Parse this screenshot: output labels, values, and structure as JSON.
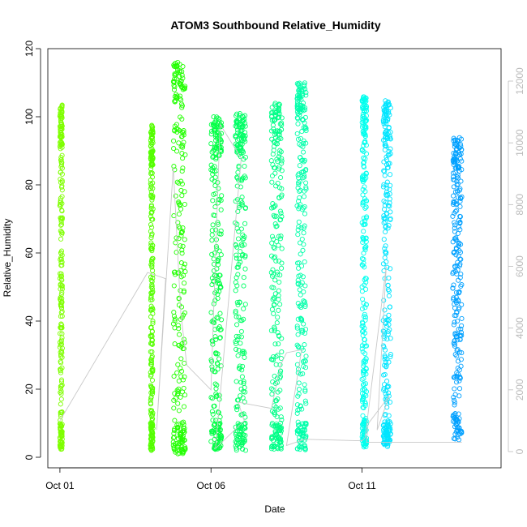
{
  "chart_data": {
    "type": "scatter",
    "title": "ATOM3 Southbound Relative_Humidity",
    "xlabel": "Date",
    "ylabel": "Relative_Humidity",
    "ylim": [
      0,
      120
    ],
    "y_ticks": [
      0,
      20,
      40,
      60,
      80,
      100,
      120
    ],
    "xlim_days": [
      0.6,
      15.6
    ],
    "x_ticks": [
      {
        "day": 1,
        "label": "Oct 01"
      },
      {
        "day": 6,
        "label": "Oct 06"
      },
      {
        "day": 11,
        "label": "Oct 11"
      }
    ],
    "y2lim": [
      0,
      12000
    ],
    "y2_ticks": [
      0,
      2000,
      4000,
      6000,
      8000,
      10000,
      12000
    ],
    "grid": false,
    "marker": "open-circle",
    "colors": {
      "axis": "#000000",
      "secondary_axis": "#bbbbbb",
      "secondary_line": "#c8c8c8"
    },
    "series": [
      {
        "day_start": 1.0,
        "day_end": 1.08,
        "ymin": 2,
        "ymax": 103.5,
        "color": "#7fff00"
      },
      {
        "day_start": 4.0,
        "day_end": 4.08,
        "ymin": 2,
        "ymax": 97.5,
        "color": "#55ff00"
      },
      {
        "day_start": 4.75,
        "day_end": 5.15,
        "ymin": 1,
        "ymax": 116,
        "color": "#22ff00"
      },
      {
        "day_start": 6.0,
        "day_end": 6.35,
        "ymin": 2,
        "ymax": 100,
        "color": "#00ff44"
      },
      {
        "day_start": 6.8,
        "day_end": 7.15,
        "ymin": 2,
        "ymax": 101,
        "color": "#00ff66"
      },
      {
        "day_start": 8.0,
        "day_end": 8.35,
        "ymin": 2,
        "ymax": 104,
        "color": "#00ff88"
      },
      {
        "day_start": 8.85,
        "day_end": 9.15,
        "ymin": 2,
        "ymax": 110,
        "color": "#00ffaa"
      },
      {
        "day_start": 11.0,
        "day_end": 11.15,
        "ymin": 3,
        "ymax": 106,
        "color": "#00ffee"
      },
      {
        "day_start": 11.7,
        "day_end": 11.95,
        "ymin": 3,
        "ymax": 105,
        "color": "#00e5ff"
      },
      {
        "day_start": 14.0,
        "day_end": 14.3,
        "ymin": 5,
        "ymax": 94,
        "color": "#00a0ff"
      }
    ],
    "secondary_series": {
      "color": "#c8c8c8",
      "day": [
        1.0,
        3.9,
        4.5,
        4.2,
        4.75,
        5.0,
        5.2,
        6.0,
        6.3,
        7.0,
        6.15,
        7.1,
        6.9,
        8.0,
        8.3,
        8.5,
        9.0,
        8.5,
        9.1,
        11.0,
        11.1,
        11.8,
        11.5,
        11.9,
        11.2,
        11.15,
        14.0,
        14.3
      ],
      "value": [
        1000,
        5800,
        5600,
        700,
        9200,
        4500,
        2800,
        2000,
        10600,
        9500,
        100,
        1000,
        1600,
        1400,
        2800,
        3200,
        3300,
        200,
        400,
        350,
        450,
        6000,
        700,
        1800,
        900,
        300,
        300,
        300
      ]
    }
  }
}
